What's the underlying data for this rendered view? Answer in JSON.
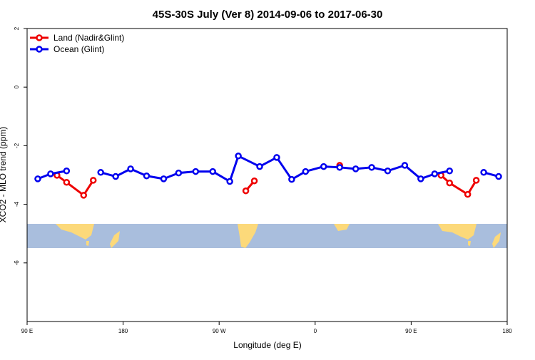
{
  "chart_data": {
    "type": "line",
    "title": "45S-30S July (Ver 8)   2014-09-06 to 2017-06-30",
    "x_label": "Longitude (deg E)",
    "y_label": "XCO2 - MLO trend (ppm)",
    "xlim": [
      90,
      540
    ],
    "xticks": [
      {
        "value": 90,
        "label": "90 E"
      },
      {
        "value": 180,
        "label": "180"
      },
      {
        "value": 270,
        "label": "90 W"
      },
      {
        "value": 360,
        "label": "0"
      },
      {
        "value": 450,
        "label": "90 E"
      },
      {
        "value": 540,
        "label": "180"
      }
    ],
    "ylim": [
      -8,
      2
    ],
    "yticks": [
      -6,
      -4,
      -2,
      0,
      2
    ],
    "legend": "top-left",
    "series": [
      {
        "name": "Land (Nadir&Glint)",
        "color": "#ee0000",
        "x": [
          118,
          127,
          143,
          152,
          null,
          295,
          303,
          null,
          383,
          null,
          478,
          486,
          503,
          511
        ],
        "values": [
          -3.01,
          -3.25,
          -3.69,
          -3.18,
          null,
          -3.54,
          -3.2,
          null,
          -2.67,
          null,
          -3.01,
          -3.27,
          -3.66,
          -3.18
        ]
      },
      {
        "name": "Ocean (Glint)",
        "color": "#0000ee",
        "x": [
          100,
          112,
          127,
          null,
          159,
          173,
          187,
          202,
          218,
          232,
          248,
          264,
          280,
          288,
          308,
          324,
          338,
          351,
          368,
          383,
          398,
          413,
          428,
          444,
          459,
          472,
          486,
          null,
          518,
          532
        ],
        "values": [
          -3.13,
          -2.96,
          -2.86,
          null,
          -2.91,
          -3.05,
          -2.79,
          -3.03,
          -3.13,
          -2.93,
          -2.88,
          -2.88,
          -3.22,
          -2.35,
          -2.71,
          -2.4,
          -3.15,
          -2.88,
          -2.71,
          -2.74,
          -2.79,
          -2.74,
          -2.86,
          -2.67,
          -3.13,
          -2.96,
          -2.86,
          null,
          -2.91,
          -3.05
        ]
      }
    ]
  }
}
